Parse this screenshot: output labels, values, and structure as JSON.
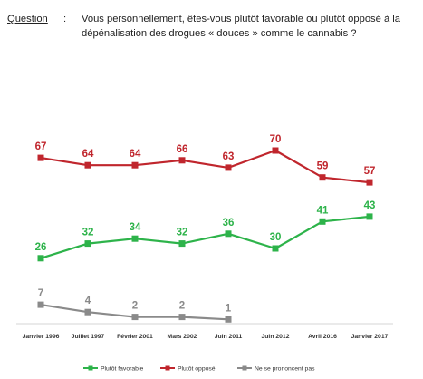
{
  "question": {
    "label": "Question",
    "colon": ":",
    "text": "Vous personnellement, êtes-vous plutôt favorable ou plutôt opposé à la dépénalisation des drogues « douces » comme le cannabis ?"
  },
  "chart_data": {
    "type": "line",
    "title": "",
    "xlabel": "",
    "ylabel": "",
    "ylim": [
      0,
      80
    ],
    "grid": false,
    "legend_position": "bottom",
    "categories": [
      "Janvier 1996",
      "Juillet 1997",
      "Février 2001",
      "Mars 2002",
      "Juin 2011",
      "Juin 2012",
      "Avril 2016",
      "Janvier 2017"
    ],
    "series": [
      {
        "name": "Plutôt favorable",
        "color": "#2db34a",
        "values": [
          26,
          32,
          34,
          32,
          36,
          30,
          41,
          43
        ]
      },
      {
        "name": "Plutôt opposé",
        "color": "#c0262d",
        "values": [
          67,
          64,
          64,
          66,
          63,
          70,
          59,
          57
        ]
      },
      {
        "name": "Ne se prononcent pas",
        "color": "#8a8a8a",
        "values": [
          7,
          4,
          2,
          2,
          1,
          null,
          null,
          null
        ]
      }
    ]
  }
}
